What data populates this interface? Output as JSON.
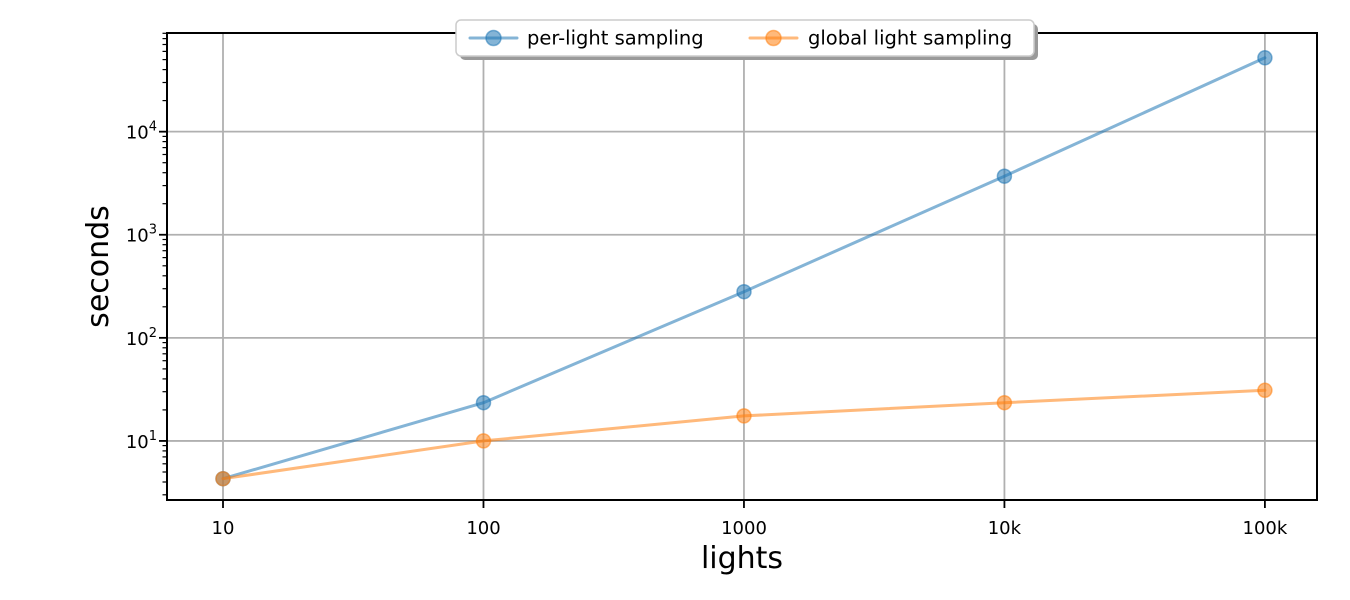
{
  "figure": {
    "background": "#ffffff"
  },
  "chart_data": {
    "type": "line",
    "title": "",
    "xlabel": "lights",
    "ylabel": "seconds",
    "x_scale": "log",
    "y_scale": "log",
    "x": [
      10,
      100,
      1000,
      10000,
      100000
    ],
    "x_tick_labels": [
      "10",
      "100",
      "1000",
      "10k",
      "100k"
    ],
    "y_ticks": [
      10,
      100,
      1000,
      10000
    ],
    "xlim_log10": [
      0.785,
      5.2
    ],
    "ylim_log10": [
      0.427,
      4.957
    ],
    "grid": true,
    "grid_color": "#b0b0b0",
    "spine_color": "#000000",
    "legend": {
      "position": "upper center",
      "face_color": "#ffffff",
      "edge_color": "#cccccc",
      "shadow_color": "#9a9a9a"
    },
    "series": [
      {
        "name": "per-light sampling",
        "color": "#1f77b4",
        "alpha": 0.55,
        "marker": "circle",
        "values": [
          4.3,
          23.5,
          280,
          3700,
          52000
        ]
      },
      {
        "name": "global light sampling",
        "color": "#ff7f0e",
        "alpha": 0.55,
        "marker": "circle",
        "values": [
          4.3,
          10,
          17.5,
          23.5,
          31
        ]
      }
    ]
  }
}
